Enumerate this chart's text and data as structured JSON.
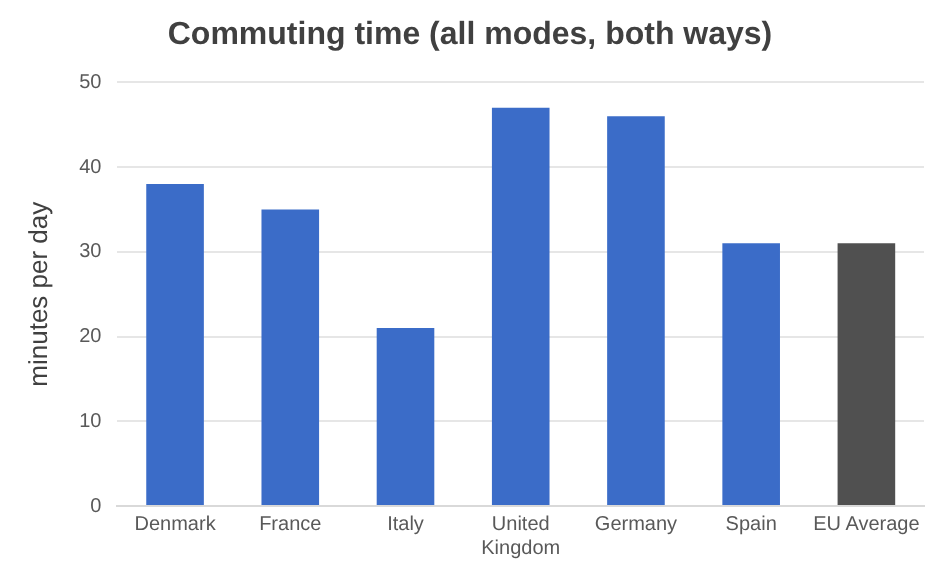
{
  "chart_data": {
    "type": "bar",
    "title": "Commuting time (all modes, both ways)",
    "ylabel": "minutes per day",
    "categories": [
      "Denmark",
      "France",
      "Italy",
      "United Kingdom",
      "Germany",
      "Spain",
      "EU Average"
    ],
    "values": [
      38,
      35,
      21,
      47,
      46,
      31,
      31
    ],
    "colors": [
      "#3b6cc8",
      "#3b6cc8",
      "#3b6cc8",
      "#3b6cc8",
      "#3b6cc8",
      "#3b6cc8",
      "#505050"
    ],
    "ylim": [
      0,
      50
    ],
    "yticks": [
      0,
      10,
      20,
      30,
      40,
      50
    ],
    "grid": "y"
  }
}
